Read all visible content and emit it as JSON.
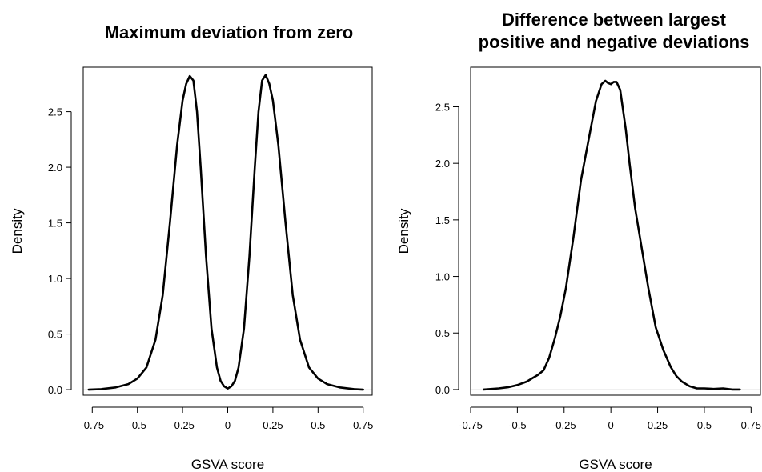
{
  "chart_data": [
    {
      "type": "line",
      "title_lines": [
        "Maximum deviation from zero"
      ],
      "xlabel": "GSVA score",
      "ylabel": "Density",
      "xlim": [
        -0.8,
        0.8
      ],
      "ylim": [
        -0.05,
        2.9
      ],
      "x_ticks": [
        -0.75,
        -0.5,
        -0.25,
        0,
        0.25,
        0.5,
        0.75
      ],
      "x_tick_labels": [
        "-0.75",
        "-0.5",
        "-0.25",
        "0",
        "0.25",
        "0.5",
        "0.75"
      ],
      "y_ticks": [
        0,
        0.5,
        1.0,
        1.5,
        2.0,
        2.5
      ],
      "y_tick_labels": [
        "0.0",
        "0.5",
        "1.0",
        "1.5",
        "2.0",
        "2.5"
      ],
      "series": [
        {
          "x": [
            -0.77,
            -0.7,
            -0.62,
            -0.55,
            -0.5,
            -0.45,
            -0.4,
            -0.36,
            -0.32,
            -0.28,
            -0.25,
            -0.23,
            -0.21,
            -0.19,
            -0.17,
            -0.15,
            -0.12,
            -0.09,
            -0.06,
            -0.04,
            -0.02,
            0,
            0.02,
            0.04,
            0.06,
            0.09,
            0.12,
            0.15,
            0.17,
            0.19,
            0.21,
            0.23,
            0.25,
            0.28,
            0.32,
            0.36,
            0.4,
            0.45,
            0.5,
            0.55,
            0.62,
            0.7,
            0.75
          ],
          "y": [
            0.0,
            0.005,
            0.02,
            0.05,
            0.1,
            0.2,
            0.45,
            0.85,
            1.5,
            2.2,
            2.6,
            2.75,
            2.82,
            2.78,
            2.5,
            2.0,
            1.2,
            0.55,
            0.2,
            0.08,
            0.03,
            0.01,
            0.03,
            0.08,
            0.2,
            0.55,
            1.2,
            2.0,
            2.5,
            2.78,
            2.83,
            2.75,
            2.6,
            2.2,
            1.5,
            0.85,
            0.45,
            0.2,
            0.1,
            0.05,
            0.02,
            0.005,
            0.0
          ]
        }
      ]
    },
    {
      "type": "line",
      "title_lines": [
        "Difference between largest",
        "positive and negative deviations"
      ],
      "xlabel": "GSVA score",
      "ylabel": "Density",
      "xlim": [
        -0.75,
        0.8
      ],
      "ylim": [
        -0.05,
        2.85
      ],
      "x_ticks": [
        -0.75,
        -0.5,
        -0.25,
        0,
        0.25,
        0.5,
        0.75
      ],
      "x_tick_labels": [
        "-0.75",
        "-0.5",
        "-0.25",
        "0",
        "0.25",
        "0.5",
        "0.75"
      ],
      "y_ticks": [
        0,
        0.5,
        1.0,
        1.5,
        2.0,
        2.5
      ],
      "y_tick_labels": [
        "0.0",
        "0.5",
        "1.0",
        "1.5",
        "2.0",
        "2.5"
      ],
      "series": [
        {
          "x": [
            -0.68,
            -0.6,
            -0.55,
            -0.5,
            -0.45,
            -0.42,
            -0.39,
            -0.36,
            -0.33,
            -0.3,
            -0.27,
            -0.24,
            -0.2,
            -0.16,
            -0.12,
            -0.08,
            -0.05,
            -0.03,
            -0.015,
            0,
            0.015,
            0.03,
            0.05,
            0.08,
            0.1,
            0.13,
            0.16,
            0.2,
            0.24,
            0.28,
            0.32,
            0.35,
            0.38,
            0.42,
            0.46,
            0.5,
            0.55,
            0.6,
            0.65,
            0.69
          ],
          "y": [
            0.0,
            0.01,
            0.02,
            0.04,
            0.07,
            0.1,
            0.13,
            0.17,
            0.28,
            0.45,
            0.65,
            0.9,
            1.35,
            1.85,
            2.2,
            2.55,
            2.7,
            2.73,
            2.71,
            2.7,
            2.72,
            2.72,
            2.65,
            2.3,
            2.0,
            1.6,
            1.3,
            0.9,
            0.55,
            0.35,
            0.2,
            0.12,
            0.07,
            0.03,
            0.01,
            0.01,
            0.005,
            0.01,
            0.0,
            0.0
          ]
        }
      ]
    }
  ]
}
